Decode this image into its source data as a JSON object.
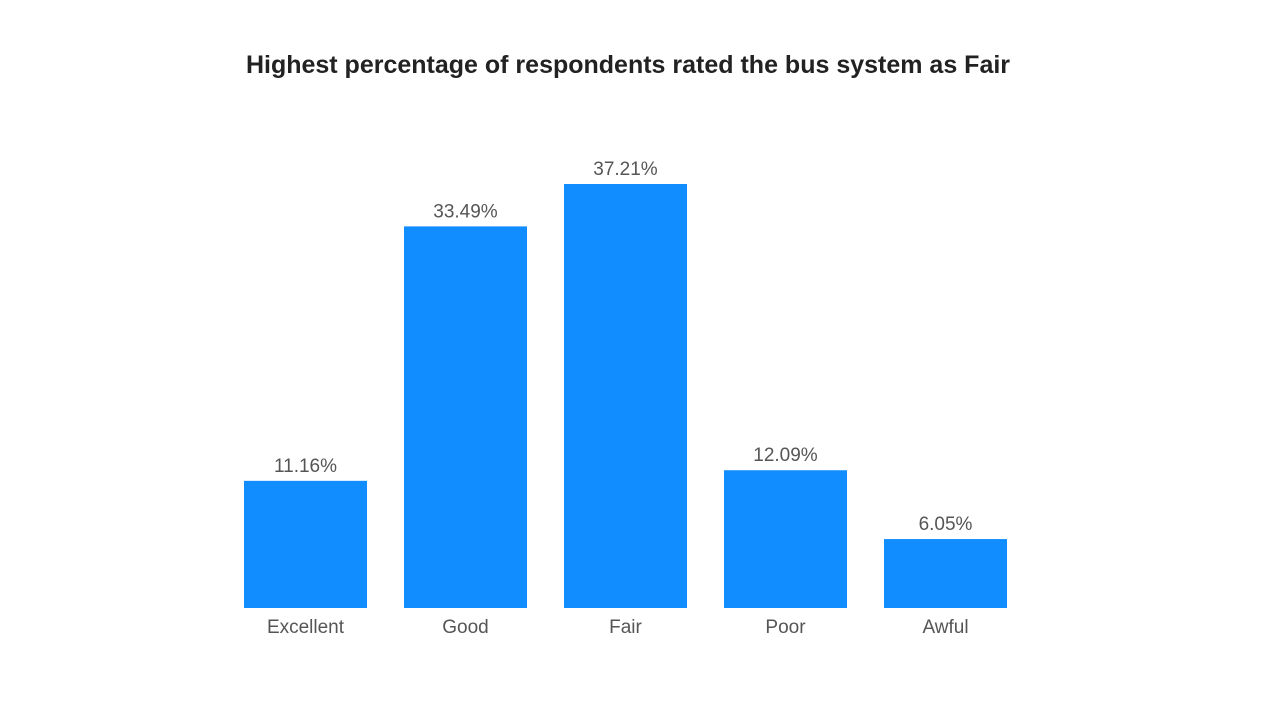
{
  "chart_data": {
    "type": "bar",
    "title": "Highest percentage of respondents rated the bus system as Fair",
    "xlabel": "",
    "ylabel": "",
    "categories": [
      "Excellent",
      "Good",
      "Fair",
      "Poor",
      "Awful"
    ],
    "values": [
      11.16,
      33.49,
      37.21,
      12.09,
      6.05
    ],
    "value_labels": [
      "11.16%",
      "33.49%",
      "37.21%",
      "12.09%",
      "6.05%"
    ],
    "ylim": [
      0,
      37.21
    ],
    "grid": false,
    "legend": "none",
    "bar_color": "#118dff"
  }
}
